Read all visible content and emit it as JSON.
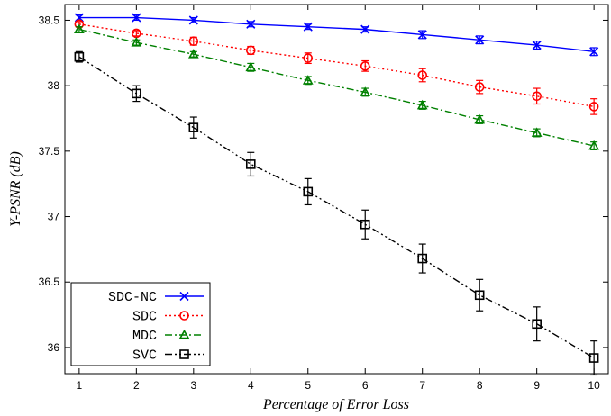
{
  "chart_data": {
    "type": "line",
    "title": "",
    "xlabel": "Percentage of Error Loss",
    "ylabel": "Y-PSNR (dB)",
    "ylabel_main": "Y-PSNR",
    "ylabel_unit": "(dB)",
    "xlim": [
      0.75,
      10.25
    ],
    "ylim": [
      35.8,
      38.62
    ],
    "x": [
      1,
      2,
      3,
      4,
      5,
      6,
      7,
      8,
      9,
      10
    ],
    "x_ticks": [
      1,
      2,
      3,
      4,
      5,
      6,
      7,
      8,
      9,
      10
    ],
    "x_tick_labels": [
      "1",
      "2",
      "3",
      "4",
      "5",
      "6",
      "7",
      "8",
      "9",
      "10"
    ],
    "y_ticks": [
      36,
      36.5,
      37,
      37.5,
      38,
      38.5
    ],
    "y_tick_labels": [
      "36",
      "36.5",
      "37",
      "37.5",
      "38",
      "38.5"
    ],
    "grid": false,
    "legend_position": "bottom-left",
    "series": [
      {
        "name": "SDC-NC",
        "color": "#0000ff",
        "dash": "solid",
        "marker": "x-star",
        "values": [
          38.52,
          38.52,
          38.5,
          38.47,
          38.45,
          38.43,
          38.39,
          38.35,
          38.31,
          38.26
        ],
        "errors": [
          0.02,
          0.02,
          0.02,
          0.02,
          0.02,
          0.02,
          0.03,
          0.03,
          0.03,
          0.03
        ]
      },
      {
        "name": "SDC",
        "color": "#ff0000",
        "dash": "dotted",
        "marker": "circle",
        "values": [
          38.47,
          38.4,
          38.34,
          38.27,
          38.21,
          38.15,
          38.08,
          37.99,
          37.92,
          37.84
        ],
        "errors": [
          0.02,
          0.02,
          0.03,
          0.03,
          0.04,
          0.04,
          0.05,
          0.05,
          0.06,
          0.06
        ]
      },
      {
        "name": "MDC",
        "color": "#008000",
        "dash": "dashdot",
        "marker": "triangle",
        "values": [
          38.43,
          38.33,
          38.24,
          38.14,
          38.04,
          37.95,
          37.85,
          37.74,
          37.64,
          37.54
        ],
        "errors": [
          0.02,
          0.02,
          0.02,
          0.03,
          0.03,
          0.03,
          0.03,
          0.03,
          0.03,
          0.03
        ]
      },
      {
        "name": "SVC",
        "color": "#000000",
        "dash": "dashdotdot",
        "marker": "square",
        "values": [
          38.22,
          37.94,
          37.68,
          37.4,
          37.19,
          36.94,
          36.68,
          36.4,
          36.18,
          35.92
        ],
        "errors": [
          0.04,
          0.06,
          0.08,
          0.09,
          0.1,
          0.11,
          0.11,
          0.12,
          0.13,
          0.13
        ]
      }
    ]
  }
}
